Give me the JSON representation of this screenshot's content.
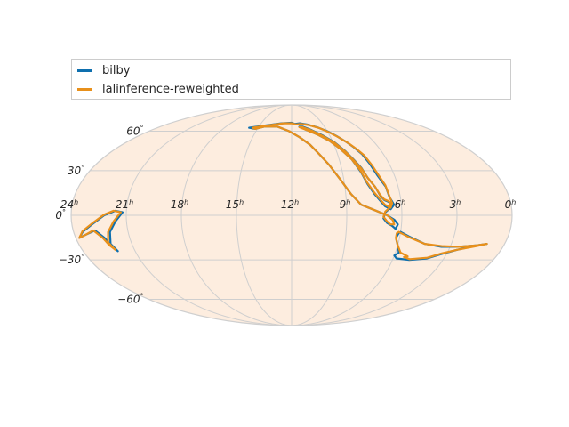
{
  "chart_data": {
    "type": "line",
    "projection": "mollweide",
    "title": "",
    "grid": true,
    "legend_placement": "top",
    "colors": {
      "ellipse_fill": "#fdeddf",
      "ellipse_edge": "#cfcfcf",
      "grid": "#cfcfcf"
    },
    "ra_ticks": [
      {
        "hours": 24,
        "label": "24",
        "unit": "h"
      },
      {
        "hours": 21,
        "label": "21",
        "unit": "h"
      },
      {
        "hours": 18,
        "label": "18",
        "unit": "h"
      },
      {
        "hours": 15,
        "label": "15",
        "unit": "h"
      },
      {
        "hours": 12,
        "label": "12",
        "unit": "h"
      },
      {
        "hours": 9,
        "label": "9",
        "unit": "h"
      },
      {
        "hours": 6,
        "label": "6",
        "unit": "h"
      },
      {
        "hours": 3,
        "label": "3",
        "unit": "h"
      },
      {
        "hours": 0,
        "label": "0",
        "unit": "h"
      }
    ],
    "dec_ticks": [
      {
        "deg": 60,
        "label": "60",
        "unit": "°"
      },
      {
        "deg": 30,
        "label": "30",
        "unit": "°"
      },
      {
        "deg": 0,
        "label": "0",
        "unit": "°"
      },
      {
        "deg": -30,
        "label": "−30",
        "unit": "°"
      },
      {
        "deg": -60,
        "label": "−60",
        "unit": "°"
      }
    ],
    "series": [
      {
        "name": "bilby",
        "color": "#0e6fae",
        "contours": [
          [
            [
              15.8,
              63
            ],
            [
              14.5,
              65
            ],
            [
              13,
              67
            ],
            [
              12.0,
              67.5
            ],
            [
              11.7,
              66.5
            ],
            [
              11.2,
              67
            ],
            [
              10.5,
              66
            ],
            [
              9.6,
              63
            ],
            [
              9.0,
              60
            ],
            [
              8.5,
              56
            ],
            [
              8.0,
              51
            ],
            [
              7.7,
              47
            ],
            [
              7.4,
              42
            ],
            [
              7.2,
              35
            ],
            [
              7.0,
              27
            ],
            [
              6.7,
              19
            ],
            [
              6.6,
              12
            ],
            [
              6.4,
              7
            ],
            [
              6.6,
              4
            ],
            [
              6.9,
              6
            ],
            [
              7.1,
              9
            ],
            [
              7.4,
              14
            ],
            [
              7.7,
              21
            ],
            [
              7.9,
              29
            ],
            [
              8.2,
              38
            ],
            [
              8.7,
              46
            ],
            [
              9.2,
              52
            ],
            [
              9.9,
              57
            ],
            [
              10.7,
              61
            ],
            [
              11.3,
              64
            ],
            [
              11.0,
              64
            ],
            [
              10.3,
              61
            ],
            [
              9.5,
              56
            ],
            [
              8.9,
              51
            ],
            [
              8.4,
              44
            ],
            [
              8.1,
              38
            ],
            [
              7.8,
              32
            ],
            [
              7.6,
              25
            ],
            [
              7.3,
              19
            ],
            [
              7.1,
              13
            ],
            [
              6.9,
              10
            ],
            [
              6.7,
              9
            ],
            [
              6.6,
              8
            ],
            [
              6.7,
              4
            ],
            [
              6.9,
              2
            ],
            [
              7.0,
              -2
            ],
            [
              6.8,
              -5
            ],
            [
              6.5,
              -7
            ],
            [
              6.3,
              -9
            ],
            [
              6.2,
              -6
            ],
            [
              6.4,
              -3
            ],
            [
              6.8,
              0
            ],
            [
              7.6,
              4
            ],
            [
              8.2,
              7
            ],
            [
              8.7,
              14
            ],
            [
              9.2,
              24
            ],
            [
              9.7,
              34
            ],
            [
              10.2,
              42
            ],
            [
              10.7,
              49
            ],
            [
              11.4,
              55
            ],
            [
              12.2,
              60
            ],
            [
              13.3,
              64
            ],
            [
              14.5,
              64
            ],
            [
              15.2,
              62
            ],
            [
              15.8,
              63
            ]
          ],
          [
            [
              6.0,
              -11
            ],
            [
              5.5,
              -14
            ],
            [
              4.5,
              -19
            ],
            [
              3.5,
              -21
            ],
            [
              2.5,
              -21
            ],
            [
              1.5,
              -20
            ],
            [
              1.0,
              -19
            ],
            [
              1.5,
              -20
            ],
            [
              2.5,
              -23
            ],
            [
              3.3,
              -26
            ],
            [
              4.0,
              -29
            ],
            [
              5.0,
              -30
            ],
            [
              5.8,
              -29
            ],
            [
              6.0,
              -27
            ],
            [
              5.8,
              -25
            ],
            [
              6.0,
              -20
            ],
            [
              6.2,
              -15
            ],
            [
              6.1,
              -12
            ],
            [
              6.0,
              -11
            ]
          ],
          [
            [
              22.0,
              -24
            ],
            [
              22.2,
              -19
            ],
            [
              22.0,
              -11
            ],
            [
              21.6,
              -4
            ],
            [
              21.2,
              2
            ],
            [
              21.6,
              3
            ],
            [
              22.2,
              0
            ],
            [
              22.9,
              -6
            ],
            [
              23.5,
              -11
            ],
            [
              23.8,
              -15
            ],
            [
              23.4,
              -13
            ],
            [
              22.8,
              -10
            ],
            [
              22.4,
              -15
            ],
            [
              22.2,
              -20
            ],
            [
              22.0,
              -24
            ]
          ]
        ]
      },
      {
        "name": "lalinference-reweighted",
        "color": "#e8901b",
        "contours": [
          [
            [
              15.5,
              63
            ],
            [
              14.3,
              65
            ],
            [
              12.8,
              67
            ],
            [
              12.0,
              67
            ],
            [
              11.6,
              66
            ],
            [
              11.1,
              66.5
            ],
            [
              10.4,
              65.5
            ],
            [
              9.5,
              62.5
            ],
            [
              8.9,
              59
            ],
            [
              8.4,
              55
            ],
            [
              7.9,
              50
            ],
            [
              7.6,
              46
            ],
            [
              7.3,
              41
            ],
            [
              7.1,
              34
            ],
            [
              6.9,
              26
            ],
            [
              6.7,
              20
            ],
            [
              6.6,
              13
            ],
            [
              6.5,
              8
            ],
            [
              6.6,
              5
            ],
            [
              6.9,
              7
            ],
            [
              7.1,
              10
            ],
            [
              7.4,
              15
            ],
            [
              7.7,
              22
            ],
            [
              7.9,
              30
            ],
            [
              8.2,
              38
            ],
            [
              8.7,
              46
            ],
            [
              9.2,
              52
            ],
            [
              9.9,
              57
            ],
            [
              10.7,
              61
            ],
            [
              11.3,
              63.5
            ],
            [
              11.0,
              63.5
            ],
            [
              10.3,
              60.5
            ],
            [
              9.5,
              55.5
            ],
            [
              8.9,
              50.5
            ],
            [
              8.4,
              43.5
            ],
            [
              8.1,
              37.5
            ],
            [
              7.8,
              31.5
            ],
            [
              7.6,
              25
            ],
            [
              7.3,
              19
            ],
            [
              7.1,
              13.5
            ],
            [
              6.9,
              10.5
            ],
            [
              6.7,
              9.5
            ],
            [
              6.6,
              8.5
            ],
            [
              6.7,
              4.5
            ],
            [
              6.9,
              2.5
            ],
            [
              7.0,
              -1
            ],
            [
              6.8,
              -4
            ],
            [
              6.6,
              -6
            ],
            [
              6.4,
              -6
            ],
            [
              6.5,
              -3
            ],
            [
              6.8,
              0
            ],
            [
              7.6,
              4
            ],
            [
              8.2,
              7
            ],
            [
              8.7,
              14
            ],
            [
              9.2,
              24
            ],
            [
              9.7,
              34
            ],
            [
              10.2,
              42
            ],
            [
              10.7,
              49
            ],
            [
              11.4,
              55
            ],
            [
              12.2,
              60
            ],
            [
              13.3,
              64
            ],
            [
              14.5,
              64
            ],
            [
              15.2,
              62
            ],
            [
              15.5,
              63
            ]
          ],
          [
            [
              6.1,
              -11
            ],
            [
              5.5,
              -14.5
            ],
            [
              4.5,
              -19
            ],
            [
              3.5,
              -20.5
            ],
            [
              2.5,
              -21
            ],
            [
              1.5,
              -20
            ],
            [
              1.0,
              -19
            ],
            [
              1.5,
              -20.5
            ],
            [
              2.5,
              -23
            ],
            [
              3.3,
              -25.5
            ],
            [
              4.0,
              -28.5
            ],
            [
              5.0,
              -29.5
            ],
            [
              5.4,
              -28
            ],
            [
              5.2,
              -27.5
            ],
            [
              5.7,
              -25
            ],
            [
              6.0,
              -20
            ],
            [
              6.2,
              -15
            ],
            [
              6.2,
              -12
            ],
            [
              6.1,
              -11
            ]
          ],
          [
            [
              22.1,
              -23
            ],
            [
              22.3,
              -18
            ],
            [
              22.1,
              -11
            ],
            [
              21.7,
              -4
            ],
            [
              21.3,
              2
            ],
            [
              21.7,
              3
            ],
            [
              22.2,
              0.5
            ],
            [
              22.9,
              -5.5
            ],
            [
              23.5,
              -10.5
            ],
            [
              23.8,
              -15
            ],
            [
              23.4,
              -13
            ],
            [
              22.9,
              -10
            ],
            [
              22.5,
              -15
            ],
            [
              22.3,
              -20
            ],
            [
              22.1,
              -23
            ]
          ]
        ]
      }
    ]
  }
}
